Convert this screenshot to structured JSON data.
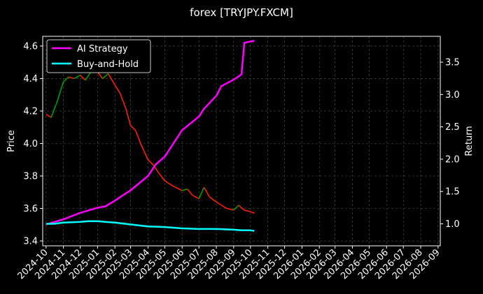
{
  "chart_data": {
    "type": "line",
    "title": "forex [TRYJPY.FXCM]",
    "ylabel_left": "Price",
    "ylabel_right": "Return",
    "left_axis": {
      "ylim": [
        3.37,
        4.66
      ],
      "ticks": [
        "3.4",
        "3.6",
        "3.8",
        "4.0",
        "4.2",
        "4.4",
        "4.6"
      ]
    },
    "right_axis": {
      "ylim": [
        0.66,
        3.9
      ],
      "ticks": [
        "1.0",
        "1.5",
        "2.0",
        "2.5",
        "3.0",
        "3.5"
      ]
    },
    "x_ticks": [
      "2024-10",
      "2024-11",
      "2024-12",
      "2025-01",
      "2025-02",
      "2025-03",
      "2025-04",
      "2025-05",
      "2025-06",
      "2025-07",
      "2025-08",
      "2025-09",
      "2025-10",
      "2025-11",
      "2025-12",
      "2026-01",
      "2026-02",
      "2026-03",
      "2026-04",
      "2026-05",
      "2026-06",
      "2026-07",
      "2026-08",
      "2026-09"
    ],
    "x_range": [
      "2024-09-25",
      "2026-09-05"
    ],
    "grid": true,
    "legend": "top-left",
    "price_series": {
      "name": "Price",
      "up_color": "#00a000",
      "down_color": "#ff2000",
      "dates": [
        "2024-10-01",
        "2024-10-10",
        "2024-10-20",
        "2024-11-01",
        "2024-11-10",
        "2024-11-20",
        "2024-12-01",
        "2024-12-10",
        "2024-12-20",
        "2025-01-01",
        "2025-01-10",
        "2025-01-20",
        "2025-02-01",
        "2025-02-10",
        "2025-02-20",
        "2025-03-01",
        "2025-03-10",
        "2025-03-20",
        "2025-04-01",
        "2025-04-10",
        "2025-04-20",
        "2025-05-01",
        "2025-05-10",
        "2025-05-20",
        "2025-06-01",
        "2025-06-10",
        "2025-06-20",
        "2025-07-01",
        "2025-07-10",
        "2025-07-20",
        "2025-08-01",
        "2025-08-10",
        "2025-08-20",
        "2025-09-01",
        "2025-09-10",
        "2025-09-20",
        "2025-10-01",
        "2025-10-08"
      ],
      "values": [
        4.18,
        4.16,
        4.25,
        4.38,
        4.41,
        4.4,
        4.42,
        4.39,
        4.44,
        4.44,
        4.4,
        4.43,
        4.36,
        4.31,
        4.22,
        4.11,
        4.08,
        3.99,
        3.9,
        3.87,
        3.82,
        3.77,
        3.75,
        3.73,
        3.71,
        3.72,
        3.68,
        3.66,
        3.73,
        3.67,
        3.64,
        3.62,
        3.6,
        3.59,
        3.62,
        3.59,
        3.58,
        3.57
      ]
    },
    "series": [
      {
        "name": "AI Strategy",
        "color": "#ff00ff",
        "dates": [
          "2024-10-01",
          "2024-11-01",
          "2024-12-01",
          "2025-01-01",
          "2025-01-15",
          "2025-02-01",
          "2025-03-01",
          "2025-04-01",
          "2025-04-15",
          "2025-05-01",
          "2025-06-01",
          "2025-07-01",
          "2025-07-10",
          "2025-08-01",
          "2025-08-10",
          "2025-09-01",
          "2025-09-15",
          "2025-09-20",
          "2025-10-01",
          "2025-10-08"
        ],
        "values": [
          0.99,
          1.07,
          1.17,
          1.25,
          1.27,
          1.36,
          1.52,
          1.74,
          1.92,
          2.04,
          2.45,
          2.66,
          2.78,
          2.98,
          3.13,
          3.23,
          3.31,
          3.8,
          3.82,
          3.83
        ]
      },
      {
        "name": "Buy-and-Hold",
        "color": "#00ffff",
        "dates": [
          "2024-10-01",
          "2024-10-15",
          "2024-11-01",
          "2024-12-01",
          "2024-12-15",
          "2025-01-01",
          "2025-01-15",
          "2025-02-01",
          "2025-03-01",
          "2025-04-01",
          "2025-05-01",
          "2025-06-01",
          "2025-07-01",
          "2025-08-01",
          "2025-09-01",
          "2025-09-15",
          "2025-10-01",
          "2025-10-08"
        ],
        "values": [
          1.0,
          1.0,
          1.02,
          1.03,
          1.04,
          1.04,
          1.03,
          1.02,
          0.99,
          0.96,
          0.95,
          0.93,
          0.92,
          0.92,
          0.91,
          0.9,
          0.9,
          0.89
        ]
      }
    ]
  }
}
